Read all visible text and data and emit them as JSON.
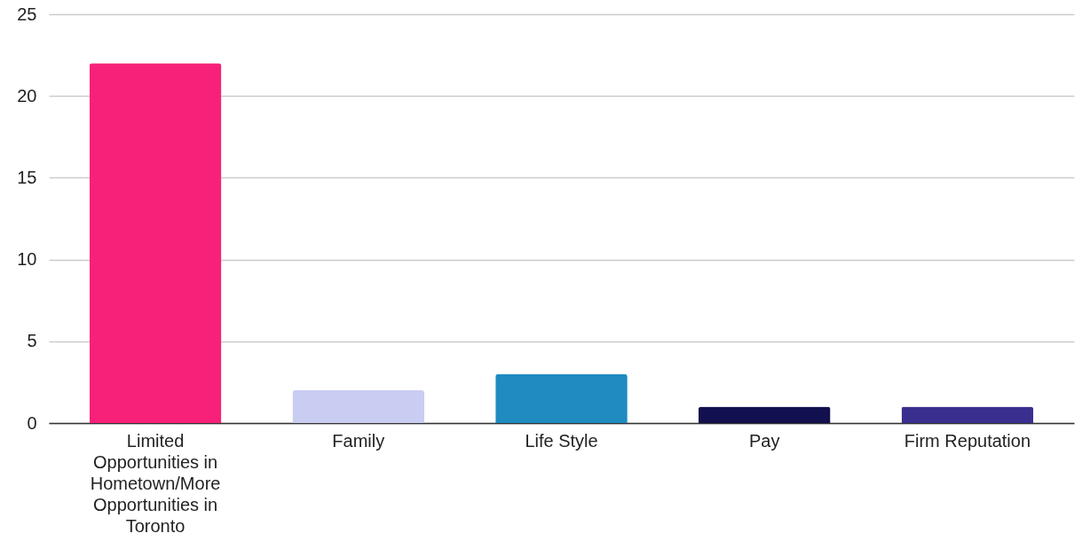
{
  "chart_data": {
    "type": "bar",
    "categories": [
      "Limited Opportunities in Hometown/More Opportunities in Toronto",
      "Family",
      "Life Style",
      "Pay",
      "Firm Reputation"
    ],
    "values": [
      22,
      2,
      3,
      1,
      1
    ],
    "colors": [
      "#f8217a",
      "#c9cdf2",
      "#1f8bc1",
      "#13104f",
      "#3a2f8f"
    ],
    "ylim": [
      0,
      25
    ],
    "yticks": [
      0,
      5,
      10,
      15,
      20,
      25
    ],
    "grid": "y"
  }
}
